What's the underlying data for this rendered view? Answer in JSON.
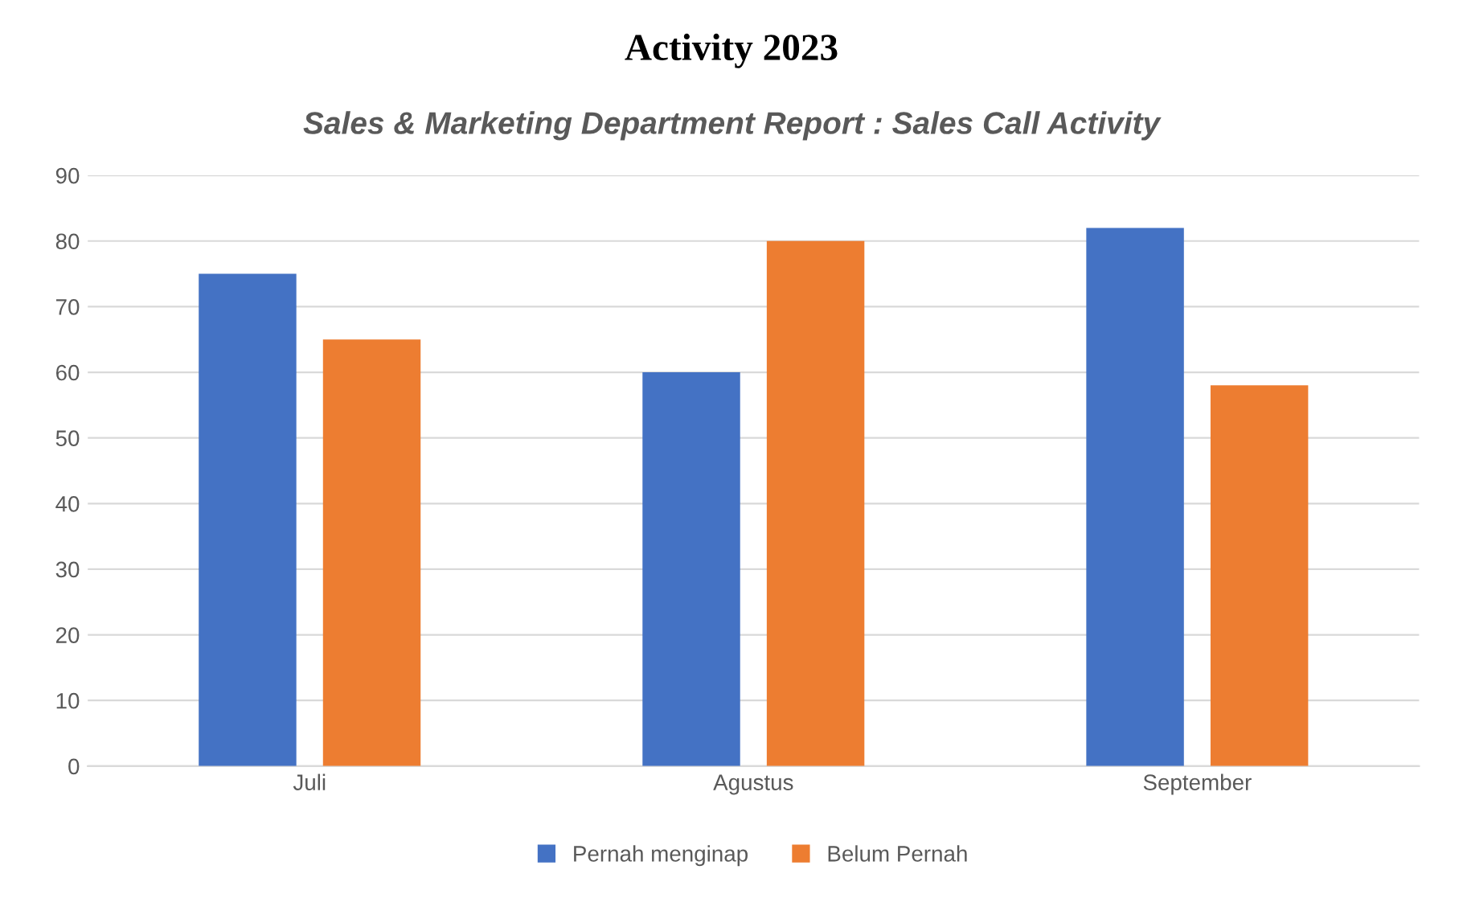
{
  "chart_data": {
    "type": "bar",
    "title": "Activity 2023",
    "subtitle": "Sales & Marketing Department Report : Sales Call Activity",
    "categories": [
      "Juli",
      "Agustus",
      "September"
    ],
    "series": [
      {
        "name": "Pernah menginap",
        "color": "#4472c4",
        "values": [
          75,
          60,
          82
        ]
      },
      {
        "name": "Belum Pernah",
        "color": "#ed7d31",
        "values": [
          65,
          80,
          58
        ]
      }
    ],
    "ylim": [
      0,
      90
    ],
    "yticks": [
      0,
      10,
      20,
      30,
      40,
      50,
      60,
      70,
      80,
      90
    ],
    "grid": "y",
    "legend": "bottom"
  }
}
